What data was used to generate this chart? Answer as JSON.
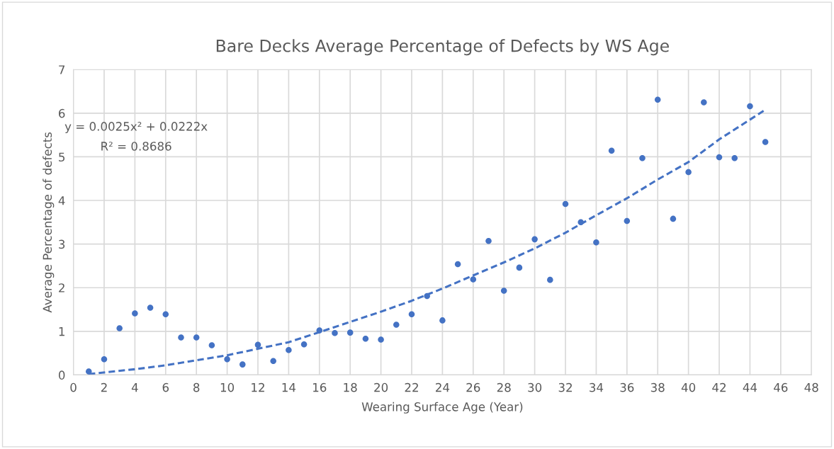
{
  "chart_data": {
    "type": "scatter",
    "title": "Bare Decks Average Percentage of Defects by WS Age",
    "xlabel": "Wearing Surface Age (Year)",
    "ylabel": "Average Percentage of defects",
    "annotations": [
      "y = 0.0025x² + 0.0222x",
      "R² = 0.8686"
    ],
    "xlim": [
      0,
      48
    ],
    "xticks": [
      0,
      2,
      4,
      6,
      8,
      10,
      12,
      14,
      16,
      18,
      20,
      22,
      24,
      26,
      28,
      30,
      32,
      34,
      36,
      38,
      40,
      42,
      44,
      46,
      48
    ],
    "ylim": [
      0,
      7
    ],
    "yticks": [
      0,
      1,
      2,
      3,
      4,
      5,
      6,
      7
    ],
    "grid": true,
    "series": [
      {
        "marker": "circle",
        "color": "#4472c4",
        "x": [
          1,
          2,
          3,
          4,
          5,
          6,
          7,
          8,
          9,
          10,
          11,
          12,
          13,
          14,
          15,
          16,
          17,
          18,
          19,
          20,
          21,
          22,
          23,
          24,
          25,
          26,
          27,
          28,
          29,
          30,
          31,
          32,
          33,
          34,
          35,
          36,
          37,
          38,
          39,
          40,
          41,
          42,
          43,
          44,
          45
        ],
        "values": [
          0.08,
          0.36,
          1.07,
          1.41,
          1.54,
          1.39,
          0.86,
          0.86,
          0.68,
          0.36,
          0.24,
          0.69,
          0.32,
          0.57,
          0.7,
          1.02,
          0.96,
          0.97,
          0.83,
          0.81,
          1.15,
          1.39,
          1.81,
          1.25,
          2.54,
          2.19,
          3.07,
          1.93,
          2.46,
          3.11,
          2.18,
          3.92,
          3.5,
          3.04,
          5.14,
          3.53,
          4.97,
          6.31,
          3.58,
          4.65,
          6.25,
          4.99,
          4.97,
          6.16,
          5.34
        ]
      },
      {
        "type": "line",
        "color": "#4472c4",
        "line_style": "dashed",
        "x": [
          1,
          4,
          6,
          10,
          14,
          16,
          20,
          22,
          24,
          28,
          30,
          32,
          34,
          36,
          38,
          40,
          42,
          45
        ],
        "values": [
          0.02,
          0.13,
          0.22,
          0.45,
          0.75,
          0.98,
          1.45,
          1.7,
          1.98,
          2.58,
          2.9,
          3.26,
          3.66,
          4.05,
          4.48,
          4.88,
          5.4,
          6.08
        ]
      }
    ]
  }
}
